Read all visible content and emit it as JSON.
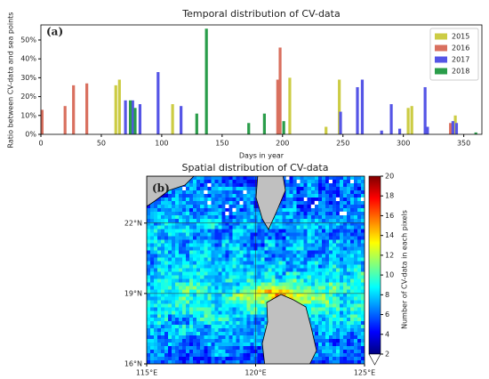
{
  "chart_data": [
    {
      "type": "bar",
      "title": "Temporal distribution of CV-data",
      "panel_label": "(a)",
      "xlabel": "Days in year",
      "ylabel": "Ratio between CV-data and sea points",
      "xlim": [
        0,
        365
      ],
      "xticks": [
        0,
        50,
        100,
        150,
        200,
        250,
        300,
        350
      ],
      "ylim": [
        0,
        58
      ],
      "yticks": [
        {
          "value": 0,
          "label": "0%"
        },
        {
          "value": 10,
          "label": "10%"
        },
        {
          "value": 20,
          "label": "20%"
        },
        {
          "value": 30,
          "label": "30%"
        },
        {
          "value": 40,
          "label": "40%"
        },
        {
          "value": 50,
          "label": "50%"
        }
      ],
      "legend": "upper right",
      "series": [
        {
          "name": "2015",
          "color": "#cccc44",
          "x": [
            62,
            65,
            109,
            206,
            236,
            247,
            304,
            307,
            343
          ],
          "values": [
            26,
            29,
            16,
            30,
            4,
            29,
            14,
            15,
            10
          ]
        },
        {
          "name": "2016",
          "color": "#d9705f",
          "x": [
            1,
            20,
            27,
            38,
            196,
            198,
            339
          ],
          "values": [
            13,
            15,
            26,
            27,
            29,
            46,
            6
          ]
        },
        {
          "name": "2017",
          "color": "#5555e6",
          "x": [
            70,
            76,
            82,
            97,
            116,
            248,
            262,
            266,
            282,
            290,
            297,
            318,
            320,
            341,
            344
          ],
          "values": [
            18,
            18,
            16,
            33,
            15,
            12,
            25,
            29,
            2,
            16,
            3,
            25,
            4,
            7,
            6
          ]
        },
        {
          "name": "2018",
          "color": "#2a9d4a",
          "x": [
            74,
            78,
            129,
            137,
            172,
            185,
            201,
            360
          ],
          "values": [
            18,
            14,
            11,
            56,
            6,
            11,
            7,
            1
          ]
        }
      ]
    },
    {
      "type": "heatmap",
      "title": "Spatial distribution of CV-data",
      "panel_label": "(b)",
      "xlim": [
        115,
        125
      ],
      "xticks": [
        {
          "value": 115,
          "label": "115°E"
        },
        {
          "value": 120,
          "label": "120°E"
        },
        {
          "value": 125,
          "label": "125°E"
        }
      ],
      "ylim": [
        16,
        24
      ],
      "yticks": [
        {
          "value": 16,
          "label": "16°N"
        },
        {
          "value": 19,
          "label": "19°N"
        },
        {
          "value": 22,
          "label": "22°N"
        }
      ],
      "colorbar": {
        "label": "Number of CV-data in each pixels",
        "lim": [
          2,
          20
        ],
        "ticks": [
          2,
          4,
          6,
          8,
          10,
          12,
          14,
          16,
          18,
          20
        ]
      }
    }
  ]
}
